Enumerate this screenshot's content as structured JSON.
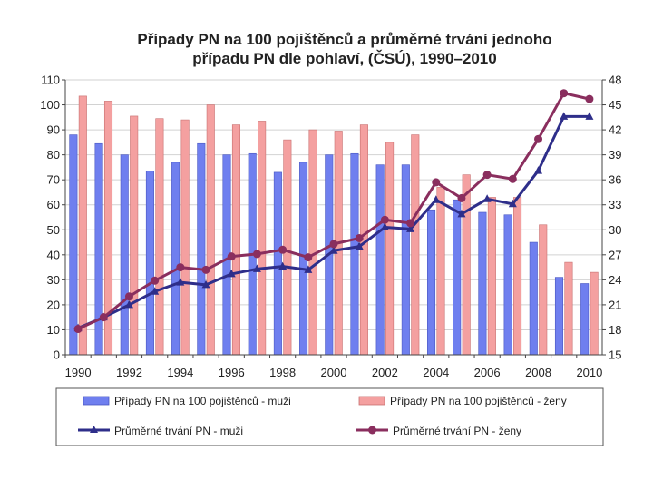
{
  "chart_data": {
    "type": "bar+line",
    "title_lines": [
      "Případy PN na 100 pojištěnců a průměrné trvání jednoho",
      "případu PN dle pohlaví, (ČSÚ), 1990–2010"
    ],
    "x": [
      1990,
      1991,
      1992,
      1993,
      1994,
      1995,
      1996,
      1997,
      1998,
      1999,
      2000,
      2001,
      2002,
      2003,
      2004,
      2005,
      2006,
      2007,
      2008,
      2009,
      2010
    ],
    "x_tick_labels": [
      "1990",
      "1992",
      "1994",
      "1996",
      "1998",
      "2000",
      "2002",
      "2004",
      "2006",
      "2008",
      "2010"
    ],
    "y_left": {
      "min": 0,
      "max": 110,
      "ticks": [
        "0",
        "10",
        "20",
        "30",
        "40",
        "50",
        "60",
        "70",
        "80",
        "90",
        "100",
        "110"
      ]
    },
    "y_right": {
      "min": 15,
      "max": 48,
      "ticks": [
        "15",
        "18",
        "21",
        "24",
        "27",
        "30",
        "33",
        "36",
        "39",
        "42",
        "45",
        "48"
      ]
    },
    "series": [
      {
        "name": "Případy PN na 100 pojištěnců - muži",
        "kind": "bar",
        "axis": "left",
        "color": "#6f7fef",
        "values": [
          88,
          84.5,
          80,
          73.5,
          77,
          84.5,
          80,
          80.5,
          73,
          77,
          80,
          80.5,
          76,
          76,
          58,
          62,
          57,
          56,
          45,
          31,
          28.5
        ]
      },
      {
        "name": "Případy PN na 100 pojištěnců - ženy",
        "kind": "bar",
        "axis": "left",
        "color": "#f4a0a0",
        "values": [
          103.5,
          101.5,
          95.5,
          94.5,
          94,
          100,
          92,
          93.5,
          86,
          90,
          89.5,
          92,
          85,
          88,
          67,
          72,
          63,
          63,
          52,
          37,
          33
        ]
      },
      {
        "name": "Průměrné trvání PN - muži",
        "kind": "line",
        "axis": "right",
        "color": "#2e2e8a",
        "values": [
          18.2,
          19.5,
          21.0,
          22.6,
          23.7,
          23.4,
          24.7,
          25.3,
          25.6,
          25.2,
          27.5,
          28.0,
          30.3,
          30.1,
          33.6,
          31.9,
          33.7,
          33.1,
          37.1,
          43.6,
          43.6
        ]
      },
      {
        "name": "Průměrné trvání PN - ženy",
        "kind": "line",
        "axis": "right",
        "color": "#8a2e5e",
        "values": [
          18.1,
          19.5,
          22.0,
          23.9,
          25.5,
          25.2,
          26.8,
          27.1,
          27.6,
          26.7,
          28.3,
          29.0,
          31.2,
          30.8,
          35.7,
          33.8,
          36.6,
          36.1,
          40.9,
          46.4,
          45.7
        ]
      }
    ]
  }
}
